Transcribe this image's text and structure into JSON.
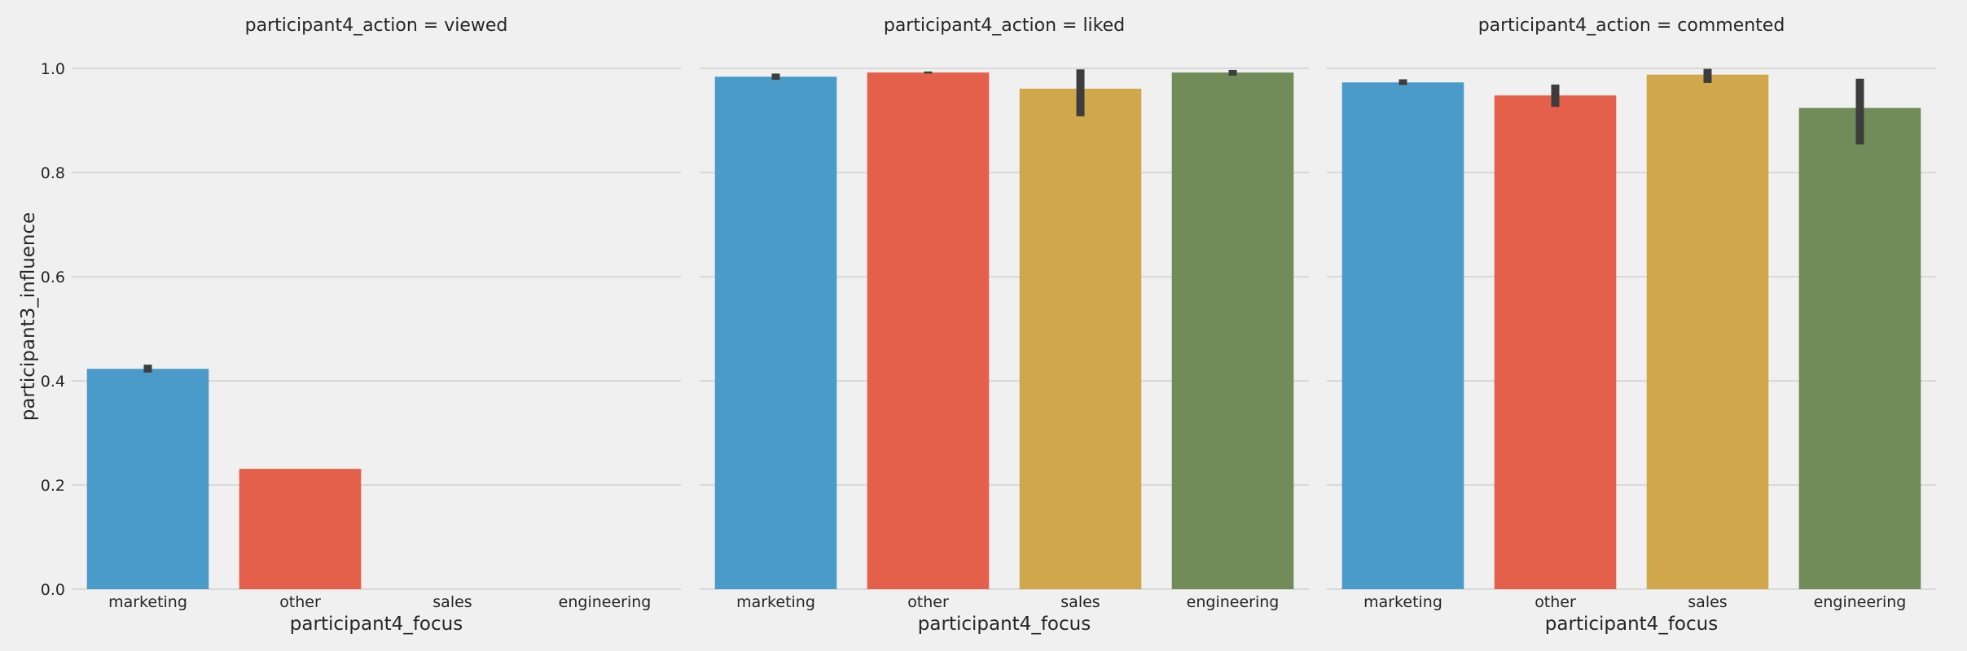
{
  "chart_data": {
    "type": "bar",
    "categories": [
      "marketing",
      "other",
      "sales",
      "engineering"
    ],
    "ylabel": "participant3_influence",
    "ylim": [
      0,
      1.05
    ],
    "yticks": [
      "0.0",
      "0.2",
      "0.4",
      "0.6",
      "0.8",
      "1.0"
    ],
    "grid": true,
    "colors": [
      "#4a9bca",
      "#e5604a",
      "#d1a74c",
      "#718c58"
    ],
    "errorbar_color": "#3d3d3d",
    "panels": [
      {
        "title": "participant4_action = viewed",
        "xlabel": "participant4_focus",
        "values": [
          0.423,
          0.231,
          0,
          0
        ],
        "ci": [
          [
            0.416,
            0.431
          ],
          [
            0.231,
            0.231
          ],
          null,
          null
        ]
      },
      {
        "title": "participant4_action = liked",
        "xlabel": "participant4_focus",
        "values": [
          0.984,
          0.992,
          0.961,
          0.992
        ],
        "ci": [
          [
            0.978,
            0.99
          ],
          [
            0.99,
            0.994
          ],
          [
            0.908,
            0.998
          ],
          [
            0.986,
            0.997
          ]
        ]
      },
      {
        "title": "participant4_action = commented",
        "xlabel": "participant4_focus",
        "values": [
          0.973,
          0.948,
          0.988,
          0.924
        ],
        "ci": [
          [
            0.968,
            0.979
          ],
          [
            0.926,
            0.969
          ],
          [
            0.972,
            0.999
          ],
          [
            0.854,
            0.98
          ]
        ]
      }
    ]
  }
}
